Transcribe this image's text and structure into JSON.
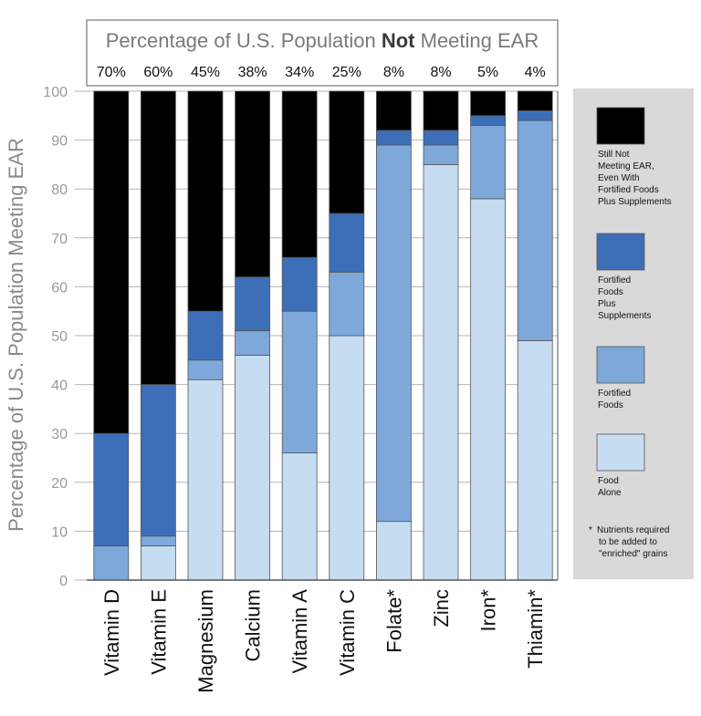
{
  "chart_data": {
    "type": "bar",
    "stacked": true,
    "title_prefix": "Percentage of U.S. Population ",
    "title_bold": "Not",
    "title_suffix": " Meeting EAR",
    "ylabel": "Percentage of U.S. Population Meeting EAR",
    "ylim": [
      0,
      100
    ],
    "yticks": [
      0,
      10,
      20,
      30,
      40,
      50,
      60,
      70,
      80,
      90,
      100
    ],
    "grid": true,
    "legend_position": "right",
    "categories": [
      "Vitamin D",
      "Vitamin E",
      "Magnesium",
      "Calcium",
      "Vitamin A",
      "Vitamin C",
      "Folate*",
      "Zinc",
      "Iron*",
      "Thiamin*"
    ],
    "not_meeting_labels": [
      "70%",
      "60%",
      "45%",
      "38%",
      "34%",
      "25%",
      "8%",
      "8%",
      "5%",
      "4%"
    ],
    "series": [
      {
        "name": "Food Alone",
        "color": "#c5dcf1",
        "values": [
          0,
          7,
          41,
          46,
          26,
          50,
          12,
          85,
          78,
          49
        ]
      },
      {
        "name": "Fortified Foods",
        "color": "#7ea8da",
        "values": [
          7,
          2,
          4,
          5,
          29,
          13,
          77,
          4,
          15,
          45
        ]
      },
      {
        "name": "Fortified Foods Plus Supplements",
        "color": "#3d6fb8",
        "values": [
          23,
          31,
          10,
          11,
          11,
          12,
          3,
          3,
          2,
          2
        ]
      },
      {
        "name": "Still Not Meeting EAR, Even With Fortified Foods Plus Supplements",
        "color": "#000000",
        "values": [
          70,
          60,
          45,
          38,
          34,
          25,
          8,
          8,
          5,
          4
        ]
      }
    ],
    "legend": [
      {
        "color": "#000000",
        "lines": [
          "Still Not",
          "Meeting EAR,",
          "Even With",
          "Fortified Foods",
          "Plus Supplements"
        ]
      },
      {
        "color": "#3d6fb8",
        "lines": [
          "Fortified",
          "Foods",
          "Plus",
          "Supplements"
        ]
      },
      {
        "color": "#7ea8da",
        "lines": [
          "Fortified",
          "Foods"
        ]
      },
      {
        "color": "#c5dcf1",
        "lines": [
          "Food",
          "Alone"
        ]
      }
    ],
    "note": [
      "Nutrients required",
      "to be added to",
      "\"enriched\" grains"
    ],
    "note_marker": "*"
  }
}
